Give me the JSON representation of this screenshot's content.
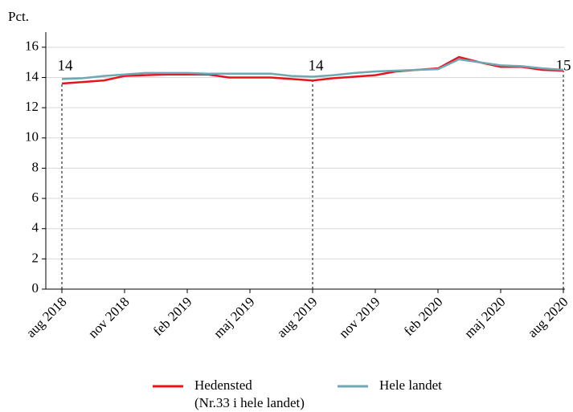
{
  "chart_data": {
    "type": "line",
    "y_label": "Pct.",
    "categories": [
      "aug 2018",
      null,
      null,
      "nov 2018",
      null,
      null,
      "feb 2019",
      null,
      null,
      "maj 2019",
      null,
      null,
      "aug 2019",
      null,
      null,
      "nov 2019",
      null,
      null,
      "feb 2020",
      null,
      null,
      "maj 2020",
      null,
      null,
      "aug 2020"
    ],
    "series": [
      {
        "name": "Hedensted",
        "color": "#e8141c",
        "values": [
          13.6,
          13.7,
          13.8,
          14.1,
          14.15,
          14.2,
          14.2,
          14.2,
          14.0,
          14.0,
          14.0,
          13.9,
          13.8,
          13.95,
          14.05,
          14.15,
          14.4,
          14.5,
          14.6,
          15.35,
          15.0,
          14.7,
          14.7,
          14.5,
          14.45
        ]
      },
      {
        "name": "Hele landet",
        "color": "#6fa8b4",
        "values": [
          13.9,
          13.95,
          14.1,
          14.2,
          14.3,
          14.3,
          14.3,
          14.25,
          14.25,
          14.25,
          14.25,
          14.1,
          14.05,
          14.15,
          14.3,
          14.4,
          14.45,
          14.5,
          14.55,
          15.2,
          15.0,
          14.8,
          14.75,
          14.6,
          14.5
        ]
      }
    ],
    "legend_note": "(Nr.33 i hele landet)",
    "annotations": [
      {
        "text": "14",
        "x": "aug 2018"
      },
      {
        "text": "14",
        "x": "aug 2019"
      },
      {
        "text": "15",
        "x": "aug 2020"
      }
    ],
    "ylim": [
      0,
      17
    ],
    "yticks": [
      0,
      2,
      4,
      6,
      8,
      10,
      12,
      14,
      16
    ],
    "grid": true
  }
}
